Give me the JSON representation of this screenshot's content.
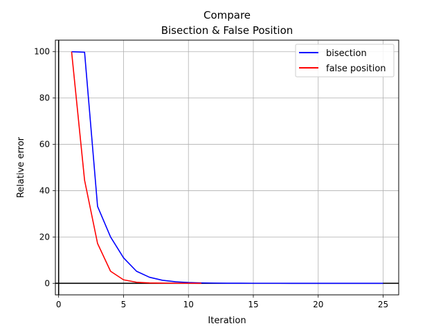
{
  "chart_data": {
    "type": "line",
    "title": "Compare",
    "subtitle": "Bisection & False Position",
    "xlabel": "Iteration",
    "ylabel": "Relative error",
    "xlim": [
      -0.25,
      26.2
    ],
    "ylim": [
      -5,
      105
    ],
    "xticks": [
      0,
      5,
      10,
      15,
      20,
      25
    ],
    "yticks": [
      0,
      20,
      40,
      60,
      80,
      100
    ],
    "grid": true,
    "legend_position": "top-right",
    "zero_lines": {
      "x": 0,
      "y": 0
    },
    "series": [
      {
        "name": "bisection",
        "color": "#0000ff",
        "x": [
          1,
          2,
          3,
          4,
          5,
          6,
          7,
          8,
          9,
          10,
          11,
          12,
          13,
          14,
          15,
          16,
          17,
          18,
          19,
          20,
          21,
          22,
          23,
          24,
          25
        ],
        "y": [
          100,
          99.8,
          33.2,
          20,
          11,
          5.2,
          2.6,
          1.3,
          0.65,
          0.33,
          0.16,
          0.08,
          0.04,
          0.02,
          0.01,
          0.005,
          0.003,
          0.001,
          0.0006,
          0.0003,
          0.0002,
          0.0001,
          5e-05,
          2e-05,
          1e-05
        ]
      },
      {
        "name": "false position",
        "color": "#ff0000",
        "x": [
          1,
          2,
          3,
          4,
          5,
          6,
          7,
          8,
          9,
          10,
          11
        ],
        "y": [
          100,
          44.5,
          17.2,
          5.2,
          1.5,
          0.45,
          0.15,
          0.05,
          0.02,
          0.005,
          0.002
        ]
      }
    ]
  }
}
